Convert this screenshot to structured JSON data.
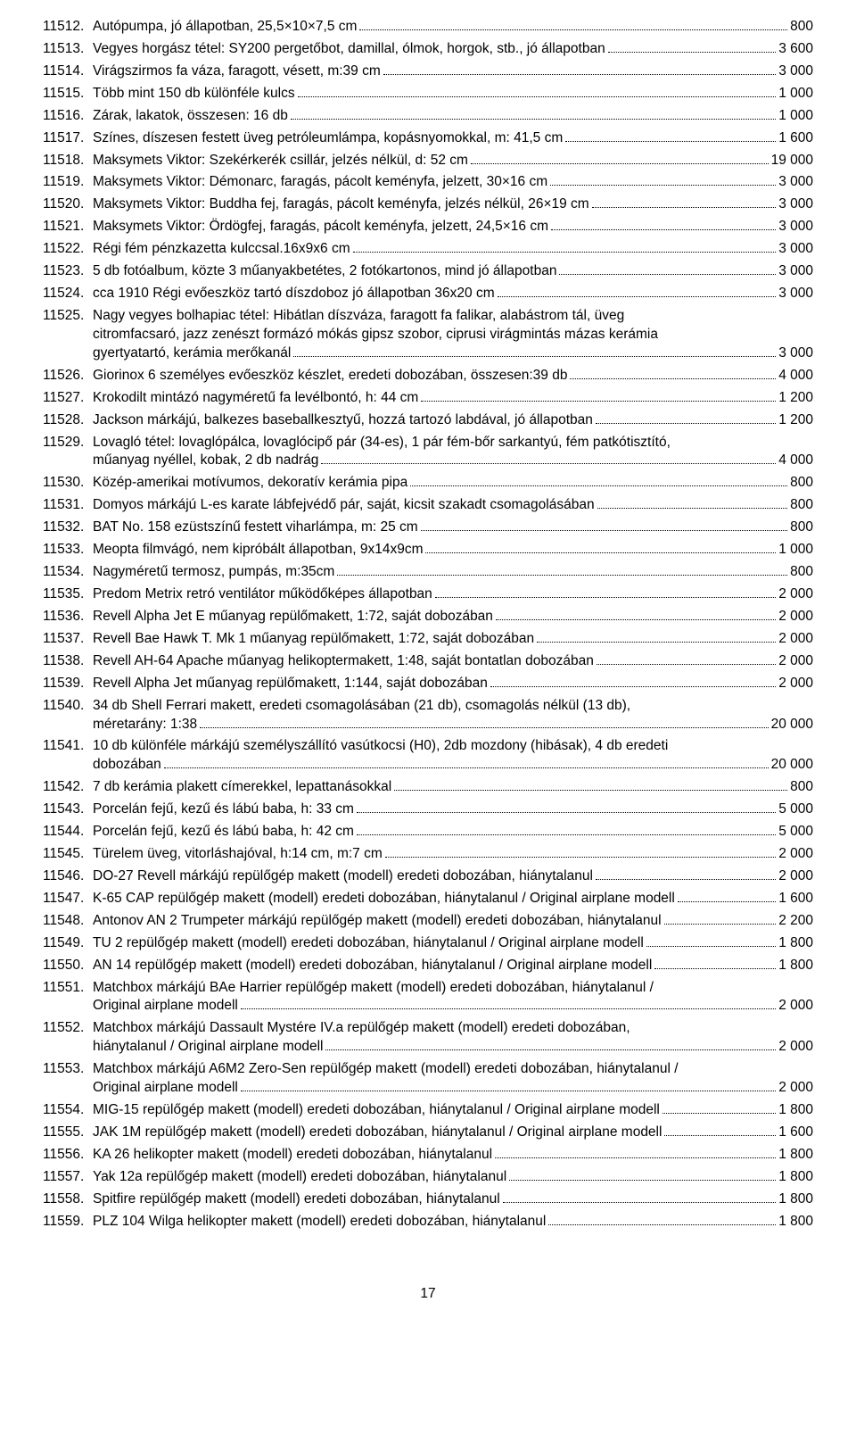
{
  "page_number": "17",
  "items": [
    {
      "num": "11512.",
      "lines": [
        {
          "text": "Autópumpa, jó állapotban, 25,5×10×7,5 cm",
          "price": "800"
        }
      ]
    },
    {
      "num": "11513.",
      "lines": [
        {
          "text": "Vegyes horgász tétel: SY200 pergetőbot, damillal, ólmok, horgok, stb., jó állapotban",
          "price": "3 600"
        }
      ]
    },
    {
      "num": "11514.",
      "lines": [
        {
          "text": "Virágszirmos fa váza, faragott, vésett, m:39 cm",
          "price": "3 000"
        }
      ]
    },
    {
      "num": "11515.",
      "lines": [
        {
          "text": "Több mint 150 db különféle kulcs",
          "price": "1 000"
        }
      ]
    },
    {
      "num": "11516.",
      "lines": [
        {
          "text": "Zárak, lakatok, összesen: 16 db",
          "price": "1 000"
        }
      ]
    },
    {
      "num": "11517.",
      "lines": [
        {
          "text": "Színes, díszesen festett üveg petróleumlámpa, kopásnyomokkal, m: 41,5 cm",
          "price": "1 600"
        }
      ]
    },
    {
      "num": "11518.",
      "lines": [
        {
          "text": "Maksymets Viktor: Szekérkerék csillár, jelzés nélkül, d: 52 cm",
          "price": "19 000"
        }
      ]
    },
    {
      "num": "11519.",
      "lines": [
        {
          "text": "Maksymets Viktor: Démonarc, faragás, pácolt keményfa, jelzett, 30×16 cm",
          "price": "3 000"
        }
      ]
    },
    {
      "num": "11520.",
      "lines": [
        {
          "text": "Maksymets Viktor: Buddha fej, faragás, pácolt keményfa, jelzés nélkül, 26×19 cm",
          "price": "3 000"
        }
      ]
    },
    {
      "num": "11521.",
      "lines": [
        {
          "text": "Maksymets Viktor: Ördögfej, faragás, pácolt keményfa, jelzett, 24,5×16 cm",
          "price": "3 000"
        }
      ]
    },
    {
      "num": "11522.",
      "lines": [
        {
          "text": "Régi fém pénzkazetta kulccsal.16x9x6 cm",
          "price": "3 000"
        }
      ]
    },
    {
      "num": "11523.",
      "lines": [
        {
          "text": "5 db fotóalbum, közte 3 műanyakbetétes, 2 fotókartonos, mind jó állapotban",
          "price": "3 000"
        }
      ]
    },
    {
      "num": "11524.",
      "lines": [
        {
          "text": "cca 1910 Régi evőeszköz tartó díszdoboz jó állapotban 36x20 cm",
          "price": "3 000"
        }
      ]
    },
    {
      "num": "11525.",
      "lines": [
        {
          "text": "Nagy vegyes bolhapiac tétel: Hibátlan díszváza, faragott fa falikar, alabástrom tál, üveg"
        },
        {
          "text": "citromfacsaró, jazz zenészt formázó mókás gipsz szobor, ciprusi virágmintás mázas kerámia"
        },
        {
          "text": "gyertyatartó, kerámia merőkanál",
          "price": "3 000"
        }
      ]
    },
    {
      "num": "11526.",
      "lines": [
        {
          "text": "Giorinox 6 személyes evőeszköz készlet, eredeti dobozában, összesen:39 db",
          "price": "4 000"
        }
      ]
    },
    {
      "num": "11527.",
      "lines": [
        {
          "text": "Krokodilt mintázó nagyméretű fa levélbontó, h: 44 cm",
          "price": "1 200"
        }
      ]
    },
    {
      "num": "11528.",
      "lines": [
        {
          "text": "Jackson márkájú, balkezes baseballkesztyű, hozzá tartozó labdával, jó állapotban",
          "price": "1 200"
        }
      ]
    },
    {
      "num": "11529.",
      "lines": [
        {
          "text": "Lovagló tétel: lovaglópálca, lovaglócipő pár (34-es), 1 pár fém-bőr sarkantyú, fém patkótisztító,"
        },
        {
          "text": "műanyag nyéllel, kobak, 2 db nadrág",
          "price": "4 000"
        }
      ]
    },
    {
      "num": "11530.",
      "lines": [
        {
          "text": "Közép-amerikai motívumos, dekoratív kerámia pipa",
          "price": "800"
        }
      ]
    },
    {
      "num": "11531.",
      "lines": [
        {
          "text": "Domyos márkájú L-es karate lábfejvédő pár, saját, kicsit szakadt csomagolásában",
          "price": "800"
        }
      ]
    },
    {
      "num": "11532.",
      "lines": [
        {
          "text": "BAT No. 158 ezüstszínű festett viharlámpa, m: 25 cm",
          "price": "800"
        }
      ]
    },
    {
      "num": "11533.",
      "lines": [
        {
          "text": "Meopta filmvágó, nem kipróbált állapotban, 9x14x9cm",
          "price": "1 000"
        }
      ]
    },
    {
      "num": "11534.",
      "lines": [
        {
          "text": "Nagyméretű termosz, pumpás, m:35cm",
          "price": "800"
        }
      ]
    },
    {
      "num": "11535.",
      "lines": [
        {
          "text": "Predom Metrix retró ventilátor működőképes állapotban",
          "price": "2 000"
        }
      ]
    },
    {
      "num": "11536.",
      "lines": [
        {
          "text": "Revell Alpha Jet E műanyag repülőmakett, 1:72, saját dobozában",
          "price": "2 000"
        }
      ]
    },
    {
      "num": "11537.",
      "lines": [
        {
          "text": "Revell Bae Hawk T. Mk 1 műanyag repülőmakett, 1:72, saját dobozában",
          "price": "2 000"
        }
      ]
    },
    {
      "num": "11538.",
      "lines": [
        {
          "text": "Revell AH-64 Apache műanyag helikoptermakett, 1:48, saját bontatlan dobozában",
          "price": "2 000"
        }
      ]
    },
    {
      "num": "11539.",
      "lines": [
        {
          "text": "Revell Alpha Jet műanyag repülőmakett, 1:144, saját dobozában",
          "price": "2 000"
        }
      ]
    },
    {
      "num": "11540.",
      "lines": [
        {
          "text": "34 db Shell Ferrari makett, eredeti csomagolásában (21 db), csomagolás nélkül (13 db),"
        },
        {
          "text": "méretarány: 1:38",
          "price": "20 000"
        }
      ]
    },
    {
      "num": "11541.",
      "lines": [
        {
          "text": "10 db különféle márkájú személyszállító vasútkocsi (H0), 2db mozdony (hibásak), 4 db eredeti"
        },
        {
          "text": "dobozában",
          "price": "20 000"
        }
      ]
    },
    {
      "num": "11542.",
      "lines": [
        {
          "text": "7 db kerámia plakett címerekkel, lepattanásokkal",
          "price": "800"
        }
      ]
    },
    {
      "num": "11543.",
      "lines": [
        {
          "text": "Porcelán fejű, kezű és lábú baba, h: 33 cm",
          "price": "5 000"
        }
      ]
    },
    {
      "num": "11544.",
      "lines": [
        {
          "text": "Porcelán fejű, kezű és lábú baba, h: 42 cm",
          "price": "5 000"
        }
      ]
    },
    {
      "num": "11545.",
      "lines": [
        {
          "text": "Türelem üveg, vitorláshajóval, h:14 cm, m:7 cm",
          "price": "2 000"
        }
      ]
    },
    {
      "num": "11546.",
      "lines": [
        {
          "text": "DO-27 Revell márkájú repülőgép makett (modell) eredeti dobozában, hiánytalanul",
          "price": "2 000"
        }
      ]
    },
    {
      "num": "11547.",
      "lines": [
        {
          "text": "K-65 CAP repülőgép makett (modell) eredeti dobozában, hiánytalanul / Original airplane modell",
          "price": "1 600"
        }
      ]
    },
    {
      "num": "11548.",
      "lines": [
        {
          "text": "Antonov AN 2 Trumpeter márkájú repülőgép makett (modell) eredeti dobozában, hiánytalanul",
          "price": "2 200"
        }
      ]
    },
    {
      "num": "11549.",
      "lines": [
        {
          "text": "TU 2 repülőgép makett (modell) eredeti dobozában, hiánytalanul / Original airplane modell",
          "price": "1 800"
        }
      ]
    },
    {
      "num": "11550.",
      "lines": [
        {
          "text": "AN 14 repülőgép makett (modell) eredeti dobozában, hiánytalanul / Original airplane modell",
          "price": "1 800"
        }
      ]
    },
    {
      "num": "11551.",
      "lines": [
        {
          "text": "Matchbox márkájú BAe Harrier repülőgép makett (modell) eredeti dobozában, hiánytalanul /"
        },
        {
          "text": "Original airplane modell",
          "price": "2 000"
        }
      ]
    },
    {
      "num": "11552.",
      "lines": [
        {
          "text": "Matchbox márkájú Dassault Mystére IV.a repülőgép makett (modell) eredeti dobozában,"
        },
        {
          "text": "hiánytalanul / Original airplane modell",
          "price": "2 000"
        }
      ]
    },
    {
      "num": "11553.",
      "lines": [
        {
          "text": "Matchbox márkájú A6M2 Zero-Sen repülőgép makett (modell) eredeti dobozában, hiánytalanul /"
        },
        {
          "text": "Original airplane modell",
          "price": "2 000"
        }
      ]
    },
    {
      "num": "11554.",
      "lines": [
        {
          "text": "MIG-15 repülőgép makett (modell) eredeti dobozában, hiánytalanul / Original airplane modell",
          "price": "1 800"
        }
      ]
    },
    {
      "num": "11555.",
      "lines": [
        {
          "text": "JAK 1M repülőgép makett (modell) eredeti dobozában, hiánytalanul / Original airplane modell",
          "price": "1 600"
        }
      ]
    },
    {
      "num": "11556.",
      "lines": [
        {
          "text": "KA 26 helikopter makett (modell) eredeti dobozában, hiánytalanul",
          "price": "1 800"
        }
      ]
    },
    {
      "num": "11557.",
      "lines": [
        {
          "text": "Yak 12a repülőgép makett (modell) eredeti dobozában, hiánytalanul",
          "price": "1 800"
        }
      ]
    },
    {
      "num": "11558.",
      "lines": [
        {
          "text": "Spitfire repülőgép makett (modell) eredeti dobozában, hiánytalanul",
          "price": "1 800"
        }
      ]
    },
    {
      "num": "11559.",
      "lines": [
        {
          "text": "PLZ 104 Wilga helikopter makett (modell) eredeti dobozában, hiánytalanul",
          "price": "1 800"
        }
      ]
    }
  ]
}
